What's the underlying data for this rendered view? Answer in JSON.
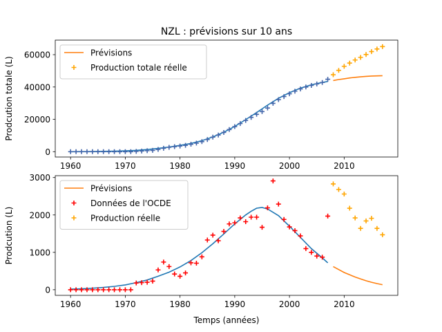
{
  "figure_title": "NZL : prévisions sur 10 ans",
  "colors": {
    "fit": "#1f77b4",
    "forecast": "#ff7f0e",
    "oecd": "#ff0000",
    "actual": "#ffa500"
  },
  "chart_data": [
    {
      "type": "line",
      "title": "NZL : prévisions sur 10 ans",
      "xlabel": "",
      "ylabel": "Prodcution totale (L)",
      "xlim": [
        1957.2,
        2019.8
      ],
      "ylim": [
        -3300,
        69000
      ],
      "xticks": [
        1960,
        1970,
        1980,
        1990,
        2000,
        2010
      ],
      "yticks": [
        0,
        20000,
        40000,
        60000
      ],
      "ytick_labels": [
        "0",
        "20000",
        "40000",
        "60000"
      ],
      "legend": {
        "position": "top-left",
        "entries": [
          "Prévisions",
          "Production totale réelle"
        ]
      },
      "series": [
        {
          "name": "",
          "style": "line",
          "color": "#1f77b4",
          "x": [
            1960,
            1962,
            1964,
            1966,
            1968,
            1970,
            1972,
            1974,
            1976,
            1978,
            1980,
            1982,
            1984,
            1986,
            1988,
            1990,
            1992,
            1994,
            1996,
            1998,
            2000,
            2002,
            2004,
            2006,
            2007
          ],
          "y": [
            0,
            50,
            100,
            200,
            300,
            500,
            800,
            1300,
            2000,
            2900,
            3900,
            5100,
            6800,
            9100,
            12000,
            15600,
            19800,
            24200,
            28800,
            33000,
            36500,
            39300,
            41300,
            42800,
            43400
          ]
        },
        {
          "name": "Prévisions",
          "style": "line",
          "color": "#ff7f0e",
          "x": [
            2008,
            2009,
            2010,
            2011,
            2012,
            2013,
            2014,
            2015,
            2016,
            2017
          ],
          "y": [
            44000,
            44600,
            45100,
            45600,
            46000,
            46300,
            46600,
            46800,
            46900,
            47000
          ]
        },
        {
          "name": "",
          "style": "plus",
          "color": "#4466aa",
          "x": [
            1960,
            1961,
            1962,
            1963,
            1964,
            1965,
            1966,
            1967,
            1968,
            1969,
            1970,
            1971,
            1972,
            1973,
            1974,
            1975,
            1976,
            1977,
            1978,
            1979,
            1980,
            1981,
            1982,
            1983,
            1984,
            1985,
            1986,
            1987,
            1988,
            1989,
            1990,
            1991,
            1992,
            1993,
            1994,
            1995,
            1996,
            1997,
            1998,
            1999,
            2000,
            2001,
            2002,
            2003,
            2004,
            2005,
            2006,
            2007
          ],
          "y": [
            0,
            0,
            0,
            0,
            0,
            0,
            0,
            0,
            0,
            0,
            0,
            0,
            200,
            400,
            600,
            800,
            1400,
            2100,
            2700,
            3100,
            3500,
            3900,
            4600,
            5300,
            6200,
            7500,
            9000,
            10300,
            11900,
            13700,
            15500,
            17400,
            19300,
            21200,
            23100,
            24800,
            27000,
            29900,
            32200,
            34100,
            35800,
            37400,
            38800,
            40000,
            41000,
            41900,
            42800,
            44800
          ]
        },
        {
          "name": "Production totale réelle",
          "style": "plus",
          "color": "#ffa500",
          "x": [
            2008,
            2009,
            2010,
            2011,
            2012,
            2013,
            2014,
            2015,
            2016,
            2017
          ],
          "y": [
            47600,
            50300,
            52800,
            54800,
            56700,
            58300,
            60100,
            61900,
            63500,
            65000
          ]
        }
      ]
    },
    {
      "type": "line",
      "title": "",
      "xlabel": "Temps (années)",
      "ylabel": "Prodcution (L)",
      "xlim": [
        1957.2,
        2019.8
      ],
      "ylim": [
        -150,
        3050
      ],
      "xticks": [
        1960,
        1970,
        1980,
        1990,
        2000,
        2010
      ],
      "yticks": [
        0,
        1000,
        2000,
        3000
      ],
      "ytick_labels": [
        "0",
        "1000",
        "2000",
        "3000"
      ],
      "legend": {
        "position": "top-left",
        "entries": [
          "Prévisions",
          "Données de l'OCDE",
          "Production réelle"
        ]
      },
      "series": [
        {
          "name": "",
          "style": "line",
          "color": "#1f77b4",
          "x": [
            1960,
            1962,
            1964,
            1966,
            1968,
            1970,
            1972,
            1974,
            1976,
            1978,
            1980,
            1982,
            1984,
            1986,
            1988,
            1990,
            1992,
            1993,
            1994,
            1995,
            1996,
            1998,
            2000,
            2002,
            2004,
            2006,
            2007
          ],
          "y": [
            15,
            25,
            40,
            60,
            90,
            130,
            190,
            260,
            360,
            470,
            610,
            780,
            990,
            1230,
            1490,
            1760,
            2000,
            2100,
            2180,
            2200,
            2160,
            1980,
            1700,
            1400,
            1100,
            850,
            720
          ]
        },
        {
          "name": "Prévisions",
          "style": "line",
          "color": "#ff7f0e",
          "x": [
            2008,
            2009,
            2010,
            2011,
            2012,
            2013,
            2014,
            2015,
            2016,
            2017
          ],
          "y": [
            620,
            540,
            460,
            400,
            340,
            290,
            240,
            200,
            165,
            135
          ]
        },
        {
          "name": "Données de l'OCDE",
          "style": "plus",
          "color": "#ff0000",
          "x": [
            1960,
            1961,
            1962,
            1963,
            1964,
            1965,
            1966,
            1967,
            1968,
            1969,
            1970,
            1971,
            1972,
            1973,
            1974,
            1975,
            1976,
            1977,
            1978,
            1979,
            1980,
            1981,
            1982,
            1983,
            1984,
            1985,
            1986,
            1987,
            1988,
            1989,
            1990,
            1991,
            1992,
            1993,
            1994,
            1995,
            1996,
            1997,
            1998,
            1999,
            2000,
            2001,
            2002,
            2003,
            2004,
            2005,
            2006,
            2007
          ],
          "y": [
            0,
            0,
            0,
            0,
            0,
            0,
            0,
            0,
            0,
            0,
            0,
            0,
            180,
            190,
            200,
            230,
            530,
            740,
            620,
            420,
            360,
            450,
            720,
            710,
            880,
            1330,
            1460,
            1310,
            1560,
            1760,
            1790,
            1920,
            1820,
            1940,
            1940,
            1670,
            2190,
            2910,
            2290,
            1880,
            1680,
            1580,
            1440,
            1100,
            1000,
            900,
            870,
            1970
          ]
        },
        {
          "name": "Production réelle",
          "style": "plus",
          "color": "#ffa500",
          "x": [
            2008,
            2009,
            2010,
            2011,
            2012,
            2013,
            2014,
            2015,
            2016,
            2017
          ],
          "y": [
            2830,
            2680,
            2560,
            2180,
            1920,
            1640,
            1840,
            1910,
            1640,
            1470
          ]
        }
      ]
    }
  ]
}
